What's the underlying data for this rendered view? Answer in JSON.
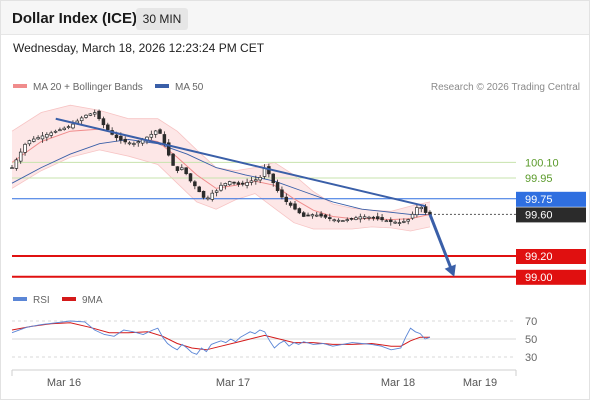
{
  "header": {
    "title": "Dollar Index (ICE)",
    "timeframe": "30 MIN",
    "datetime": "Wednesday, March 18, 2026 12:23:24 PM CET"
  },
  "legend": {
    "ma20_label": "MA 20 + Bollinger Bands",
    "ma50_label": "MA 50",
    "credit": "Research © 2026 Trading Central",
    "rsi_label": "RSI",
    "rsi_ma_label": "9MA"
  },
  "colors": {
    "ma20": "#f08c8c",
    "ma50": "#3a5fa8",
    "bollinger_fill": "#fde3e3",
    "candle": "#2b2b2b",
    "resistance": "#8fc45a",
    "pivot": "#2f6fe0",
    "support": "#e01010",
    "trend": "#3a5fa8",
    "rsi": "#5b86d6",
    "rsi_ma": "#d41a1a"
  },
  "chart_data": [
    {
      "type": "candlestick",
      "x_ticks": [
        "Mar 16",
        "Mar 17",
        "Mar 18",
        "Mar 19"
      ],
      "y_range": [
        98.95,
        100.7
      ],
      "levels": [
        {
          "value": 100.1,
          "label": "100.10",
          "kind": "resistance"
        },
        {
          "value": 99.95,
          "label": "99.95",
          "kind": "resistance"
        },
        {
          "value": 99.75,
          "label": "99.75",
          "kind": "pivot"
        },
        {
          "value": 99.6,
          "label": "99.60",
          "kind": "last"
        },
        {
          "value": 99.2,
          "label": "99.20",
          "kind": "support"
        },
        {
          "value": 99.0,
          "label": "99.00",
          "kind": "support"
        }
      ],
      "price_path": [
        [
          0,
          100.05
        ],
        [
          3,
          100.3
        ],
        [
          6,
          100.35
        ],
        [
          9,
          100.4
        ],
        [
          12,
          100.45
        ],
        [
          15,
          100.55
        ],
        [
          17,
          100.58
        ],
        [
          19,
          100.45
        ],
        [
          21,
          100.35
        ],
        [
          23,
          100.3
        ],
        [
          25,
          100.28
        ],
        [
          27,
          100.32
        ],
        [
          29,
          100.38
        ],
        [
          30,
          100.42
        ],
        [
          31,
          100.33
        ],
        [
          32,
          100.2
        ],
        [
          33,
          100.08
        ],
        [
          34,
          100.02
        ],
        [
          35,
          100.05
        ],
        [
          36,
          99.98
        ],
        [
          37,
          99.9
        ],
        [
          38,
          99.86
        ],
        [
          39,
          99.78
        ],
        [
          40,
          99.74
        ],
        [
          41,
          99.8
        ],
        [
          42,
          99.82
        ],
        [
          43,
          99.88
        ],
        [
          44,
          99.9
        ],
        [
          45,
          99.92
        ],
        [
          46,
          99.9
        ],
        [
          47,
          99.88
        ],
        [
          48,
          99.9
        ],
        [
          49,
          99.92
        ],
        [
          50,
          99.93
        ],
        [
          51,
          99.95
        ],
        [
          52,
          100.05
        ],
        [
          53,
          99.98
        ],
        [
          54,
          99.88
        ],
        [
          55,
          99.8
        ],
        [
          56,
          99.74
        ],
        [
          57,
          99.7
        ],
        [
          58,
          99.66
        ],
        [
          59,
          99.62
        ],
        [
          60,
          99.58
        ],
        [
          62,
          99.6
        ],
        [
          64,
          99.58
        ],
        [
          66,
          99.55
        ],
        [
          68,
          99.54
        ],
        [
          70,
          99.56
        ],
        [
          72,
          99.58
        ],
        [
          74,
          99.57
        ],
        [
          76,
          99.55
        ],
        [
          78,
          99.53
        ],
        [
          80,
          99.52
        ],
        [
          82,
          99.56
        ],
        [
          83,
          99.66
        ],
        [
          84,
          99.68
        ],
        [
          85,
          99.62
        ],
        [
          86,
          99.6
        ]
      ],
      "ma20": [
        [
          0,
          100.1
        ],
        [
          6,
          100.3
        ],
        [
          12,
          100.4
        ],
        [
          18,
          100.42
        ],
        [
          24,
          100.35
        ],
        [
          30,
          100.3
        ],
        [
          34,
          100.15
        ],
        [
          38,
          99.98
        ],
        [
          42,
          99.85
        ],
        [
          46,
          99.88
        ],
        [
          50,
          99.92
        ],
        [
          54,
          99.88
        ],
        [
          58,
          99.75
        ],
        [
          62,
          99.64
        ],
        [
          66,
          99.58
        ],
        [
          70,
          99.56
        ],
        [
          74,
          99.56
        ],
        [
          78,
          99.55
        ],
        [
          82,
          99.56
        ],
        [
          86,
          99.6
        ]
      ],
      "ma50": [
        [
          0,
          99.9
        ],
        [
          6,
          100.05
        ],
        [
          12,
          100.18
        ],
        [
          18,
          100.28
        ],
        [
          24,
          100.32
        ],
        [
          30,
          100.28
        ],
        [
          36,
          100.18
        ],
        [
          42,
          100.05
        ],
        [
          48,
          99.98
        ],
        [
          54,
          99.92
        ],
        [
          60,
          99.82
        ],
        [
          66,
          99.72
        ],
        [
          72,
          99.65
        ],
        [
          78,
          99.62
        ],
        [
          82,
          99.6
        ],
        [
          86,
          99.6
        ]
      ],
      "bollinger_upper": [
        [
          0,
          100.4
        ],
        [
          6,
          100.58
        ],
        [
          12,
          100.65
        ],
        [
          18,
          100.6
        ],
        [
          24,
          100.52
        ],
        [
          30,
          100.52
        ],
        [
          34,
          100.4
        ],
        [
          38,
          100.22
        ],
        [
          42,
          100.05
        ],
        [
          46,
          100.02
        ],
        [
          50,
          100.05
        ],
        [
          54,
          100.1
        ],
        [
          58,
          99.98
        ],
        [
          62,
          99.82
        ],
        [
          66,
          99.7
        ],
        [
          70,
          99.66
        ],
        [
          74,
          99.64
        ],
        [
          78,
          99.63
        ],
        [
          82,
          99.68
        ],
        [
          86,
          99.72
        ]
      ],
      "bollinger_lower": [
        [
          0,
          99.85
        ],
        [
          6,
          100.02
        ],
        [
          12,
          100.15
        ],
        [
          18,
          100.22
        ],
        [
          24,
          100.16
        ],
        [
          30,
          100.08
        ],
        [
          34,
          99.9
        ],
        [
          38,
          99.72
        ],
        [
          42,
          99.65
        ],
        [
          46,
          99.74
        ],
        [
          50,
          99.8
        ],
        [
          54,
          99.66
        ],
        [
          58,
          99.52
        ],
        [
          62,
          99.46
        ],
        [
          66,
          99.46
        ],
        [
          70,
          99.46
        ],
        [
          74,
          99.48
        ],
        [
          78,
          99.47
        ],
        [
          82,
          99.44
        ],
        [
          86,
          99.48
        ]
      ],
      "trend_line": [
        [
          9,
          100.52
        ],
        [
          85,
          99.68
        ]
      ],
      "forecast_arrow": [
        [
          86,
          99.6
        ],
        [
          91,
          99.0
        ]
      ]
    },
    {
      "type": "line",
      "title": "RSI",
      "y_ticks": [
        30,
        50,
        70
      ],
      "y_range": [
        20,
        80
      ],
      "rsi": [
        [
          0,
          57
        ],
        [
          3,
          63
        ],
        [
          6,
          66
        ],
        [
          9,
          68
        ],
        [
          12,
          70
        ],
        [
          15,
          69
        ],
        [
          17,
          60
        ],
        [
          19,
          55
        ],
        [
          21,
          53
        ],
        [
          23,
          60
        ],
        [
          25,
          58
        ],
        [
          27,
          55
        ],
        [
          29,
          60
        ],
        [
          30,
          62
        ],
        [
          31,
          52
        ],
        [
          32,
          45
        ],
        [
          33,
          41
        ],
        [
          34,
          38
        ],
        [
          35,
          44
        ],
        [
          36,
          40
        ],
        [
          37,
          35
        ],
        [
          38,
          33
        ],
        [
          39,
          40
        ],
        [
          40,
          36
        ],
        [
          41,
          44
        ],
        [
          42,
          46
        ],
        [
          43,
          48
        ],
        [
          44,
          46
        ],
        [
          45,
          50
        ],
        [
          46,
          47
        ],
        [
          47,
          52
        ],
        [
          48,
          55
        ],
        [
          49,
          58
        ],
        [
          50,
          56
        ],
        [
          51,
          60
        ],
        [
          52,
          58
        ],
        [
          53,
          48
        ],
        [
          54,
          40
        ],
        [
          55,
          45
        ],
        [
          56,
          48
        ],
        [
          57,
          42
        ],
        [
          58,
          46
        ],
        [
          59,
          44
        ],
        [
          60,
          47
        ],
        [
          62,
          44
        ],
        [
          64,
          45
        ],
        [
          66,
          42
        ],
        [
          68,
          44
        ],
        [
          70,
          46
        ],
        [
          72,
          45
        ],
        [
          74,
          44
        ],
        [
          76,
          42
        ],
        [
          78,
          38
        ],
        [
          80,
          40
        ],
        [
          81,
          52
        ],
        [
          82,
          62
        ],
        [
          83,
          58
        ],
        [
          84,
          56
        ],
        [
          85,
          50
        ],
        [
          86,
          52
        ]
      ],
      "rsi_ma": [
        [
          0,
          60
        ],
        [
          4,
          64
        ],
        [
          8,
          67
        ],
        [
          12,
          68
        ],
        [
          16,
          63
        ],
        [
          20,
          57
        ],
        [
          24,
          57
        ],
        [
          28,
          58
        ],
        [
          31,
          53
        ],
        [
          34,
          45
        ],
        [
          37,
          40
        ],
        [
          40,
          38
        ],
        [
          43,
          42
        ],
        [
          46,
          46
        ],
        [
          49,
          50
        ],
        [
          52,
          54
        ],
        [
          55,
          50
        ],
        [
          58,
          46
        ],
        [
          62,
          46
        ],
        [
          66,
          44
        ],
        [
          70,
          44
        ],
        [
          74,
          45
        ],
        [
          78,
          42
        ],
        [
          80,
          42
        ],
        [
          82,
          48
        ],
        [
          84,
          52
        ],
        [
          86,
          52
        ]
      ]
    }
  ]
}
